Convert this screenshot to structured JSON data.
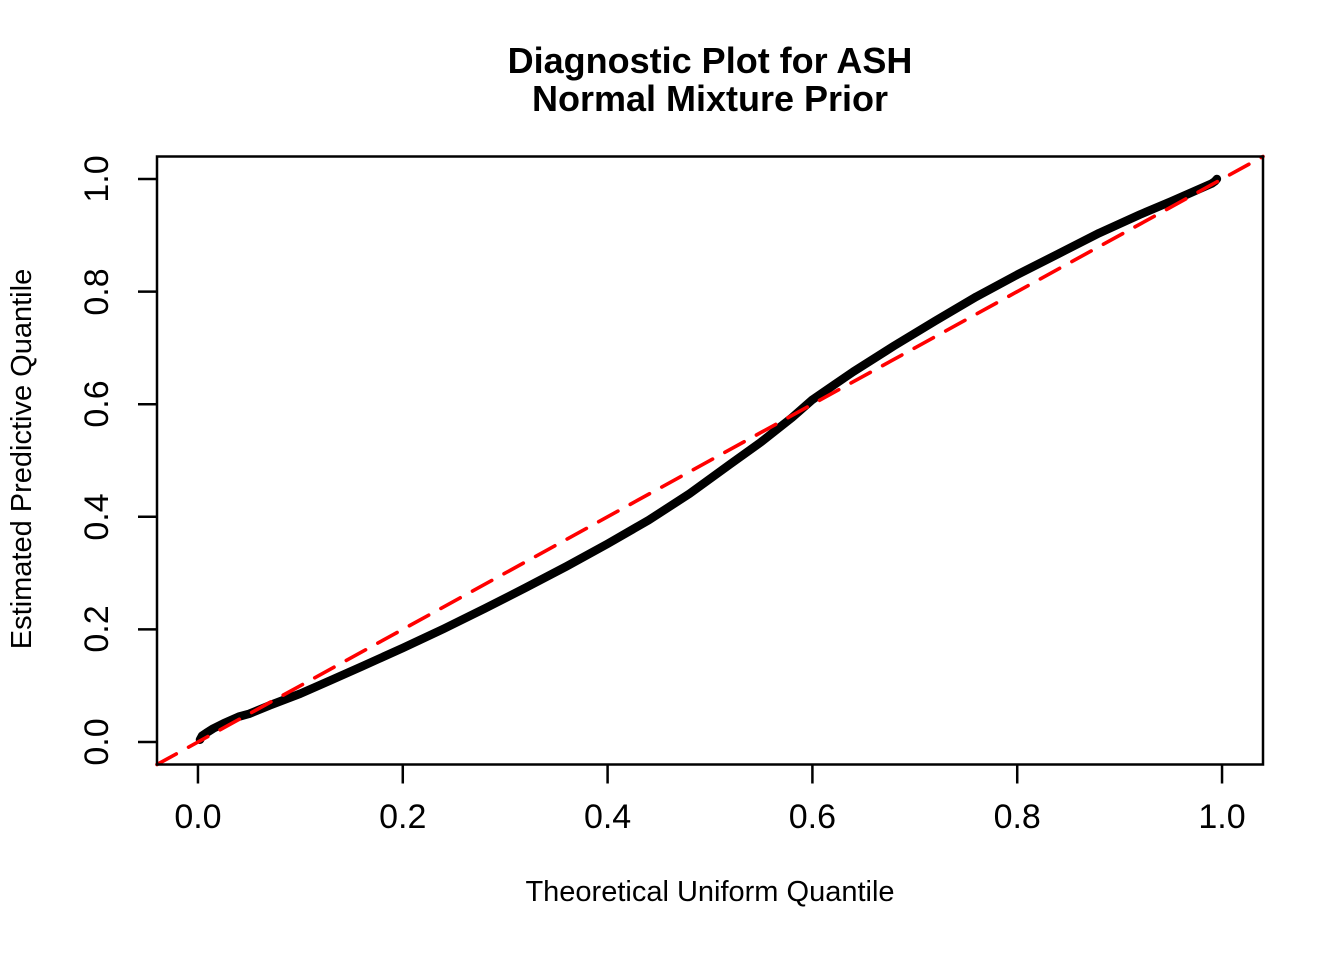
{
  "title": {
    "line1": "Diagnostic Plot for ASH",
    "line2": "Normal Mixture Prior"
  },
  "axes": {
    "x": {
      "label": "Theoretical Uniform Quantile",
      "tick_labels": [
        "0.0",
        "0.2",
        "0.4",
        "0.6",
        "0.8",
        "1.0"
      ],
      "tick_values": [
        0,
        0.2,
        0.4,
        0.6,
        0.8,
        1.0
      ],
      "range": [
        -0.04,
        1.04
      ]
    },
    "y": {
      "label": "Estimated Predictive Quantile",
      "tick_labels": [
        "0.0",
        "0.2",
        "0.4",
        "0.6",
        "0.8",
        "1.0"
      ],
      "tick_values": [
        0,
        0.2,
        0.4,
        0.6,
        0.8,
        1.0
      ],
      "range": [
        -0.04,
        1.04
      ]
    }
  },
  "colors": {
    "curve": "#000000",
    "reference_line": "#FF0000",
    "background": "#FFFFFF",
    "text": "#000000"
  },
  "chart_data": {
    "type": "line",
    "title": "Diagnostic Plot for ASH Normal Mixture Prior",
    "xlabel": "Theoretical Uniform Quantile",
    "ylabel": "Estimated Predictive Quantile",
    "xlim": [
      -0.04,
      1.04
    ],
    "ylim": [
      -0.04,
      1.04
    ],
    "grid": false,
    "legend": "none",
    "series": [
      {
        "name": "predictive-quantile-curve",
        "type": "line",
        "color": "#000000",
        "stroke_width": 8.5,
        "dash": null,
        "points": [
          [
            0.002,
            0.004
          ],
          [
            0.004,
            0.011
          ],
          [
            0.008,
            0.016
          ],
          [
            0.015,
            0.024
          ],
          [
            0.025,
            0.033
          ],
          [
            0.04,
            0.045
          ],
          [
            0.05,
            0.05
          ],
          [
            0.07,
            0.065
          ],
          [
            0.1,
            0.086
          ],
          [
            0.13,
            0.11
          ],
          [
            0.16,
            0.134
          ],
          [
            0.2,
            0.167
          ],
          [
            0.24,
            0.201
          ],
          [
            0.28,
            0.237
          ],
          [
            0.32,
            0.274
          ],
          [
            0.36,
            0.312
          ],
          [
            0.4,
            0.352
          ],
          [
            0.44,
            0.394
          ],
          [
            0.48,
            0.441
          ],
          [
            0.52,
            0.494
          ],
          [
            0.55,
            0.533
          ],
          [
            0.58,
            0.576
          ],
          [
            0.6,
            0.608
          ],
          [
            0.64,
            0.658
          ],
          [
            0.68,
            0.704
          ],
          [
            0.72,
            0.748
          ],
          [
            0.76,
            0.791
          ],
          [
            0.8,
            0.83
          ],
          [
            0.84,
            0.867
          ],
          [
            0.88,
            0.904
          ],
          [
            0.92,
            0.937
          ],
          [
            0.95,
            0.96
          ],
          [
            0.965,
            0.972
          ],
          [
            0.98,
            0.984
          ],
          [
            0.99,
            0.992
          ],
          [
            0.993,
            0.996
          ],
          [
            0.995,
            1.0
          ]
        ]
      },
      {
        "name": "reference-diagonal",
        "type": "line",
        "color": "#FF0000",
        "stroke_width": 3.6,
        "dash": [
          22,
          14
        ],
        "points": [
          [
            -0.04,
            -0.04
          ],
          [
            1.04,
            1.04
          ]
        ]
      }
    ]
  }
}
